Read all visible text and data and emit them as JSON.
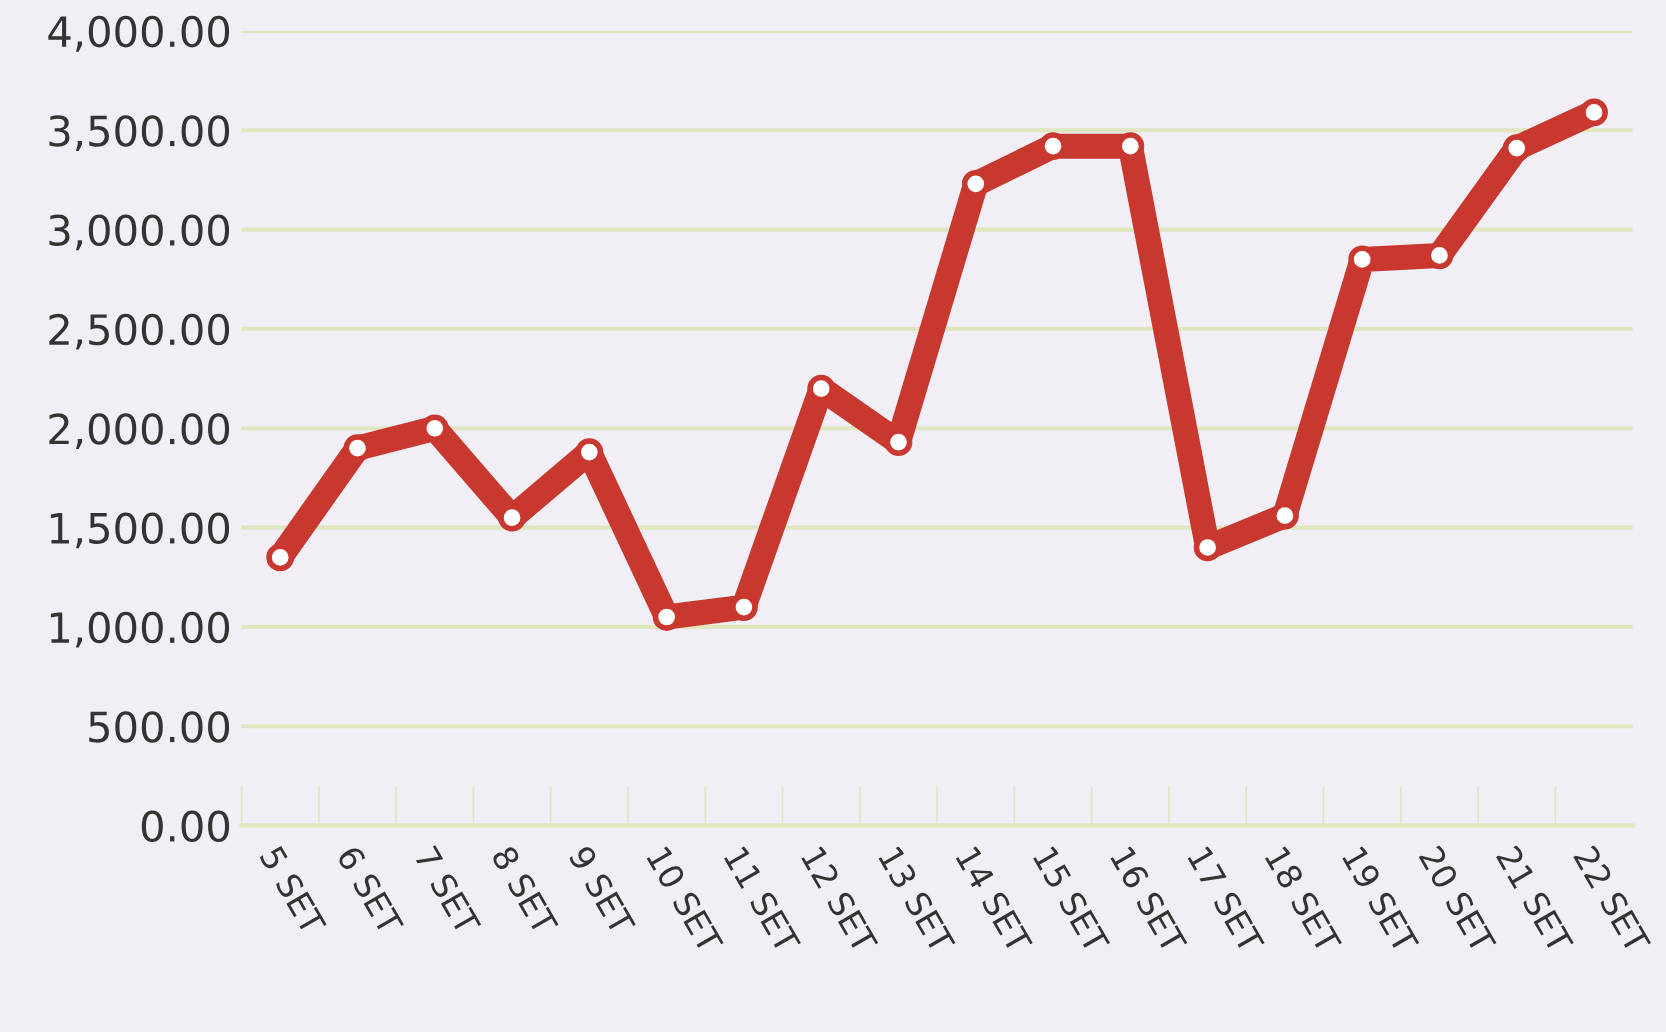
{
  "chart_data": {
    "type": "line",
    "categories": [
      "5 SET",
      "6 SET",
      "7 SET",
      "8 SET",
      "9 SET",
      "10 SET",
      "11 SET",
      "12 SET",
      "13 SET",
      "14 SET",
      "15 SET",
      "16 SET",
      "17 SET",
      "18 SET",
      "19 SET",
      "20 SET",
      "21 SET",
      "22 SET"
    ],
    "series": [
      {
        "color": "#c8382e",
        "values": [
          1350,
          1900,
          2000,
          1550,
          1880,
          1050,
          1100,
          2200,
          1930,
          3230,
          3420,
          3420,
          1400,
          1560,
          2850,
          2870,
          3410,
          3590
        ]
      }
    ],
    "ylim": [
      0,
      4000
    ],
    "yticks": [
      {
        "value": 0,
        "label": "0.00"
      },
      {
        "value": 500,
        "label": "500.00"
      },
      {
        "value": 1000,
        "label": "1,000.00"
      },
      {
        "value": 1500,
        "label": "1,500.00"
      },
      {
        "value": 2000,
        "label": "2,000.00"
      },
      {
        "value": 2500,
        "label": "2,500.00"
      },
      {
        "value": 3000,
        "label": "3,000.00"
      },
      {
        "value": 3500,
        "label": "3,500.00"
      },
      {
        "value": 4000,
        "label": "4,000.00"
      }
    ],
    "grid": "y",
    "marker": "circle",
    "line_style": "solid",
    "legend": false
  }
}
